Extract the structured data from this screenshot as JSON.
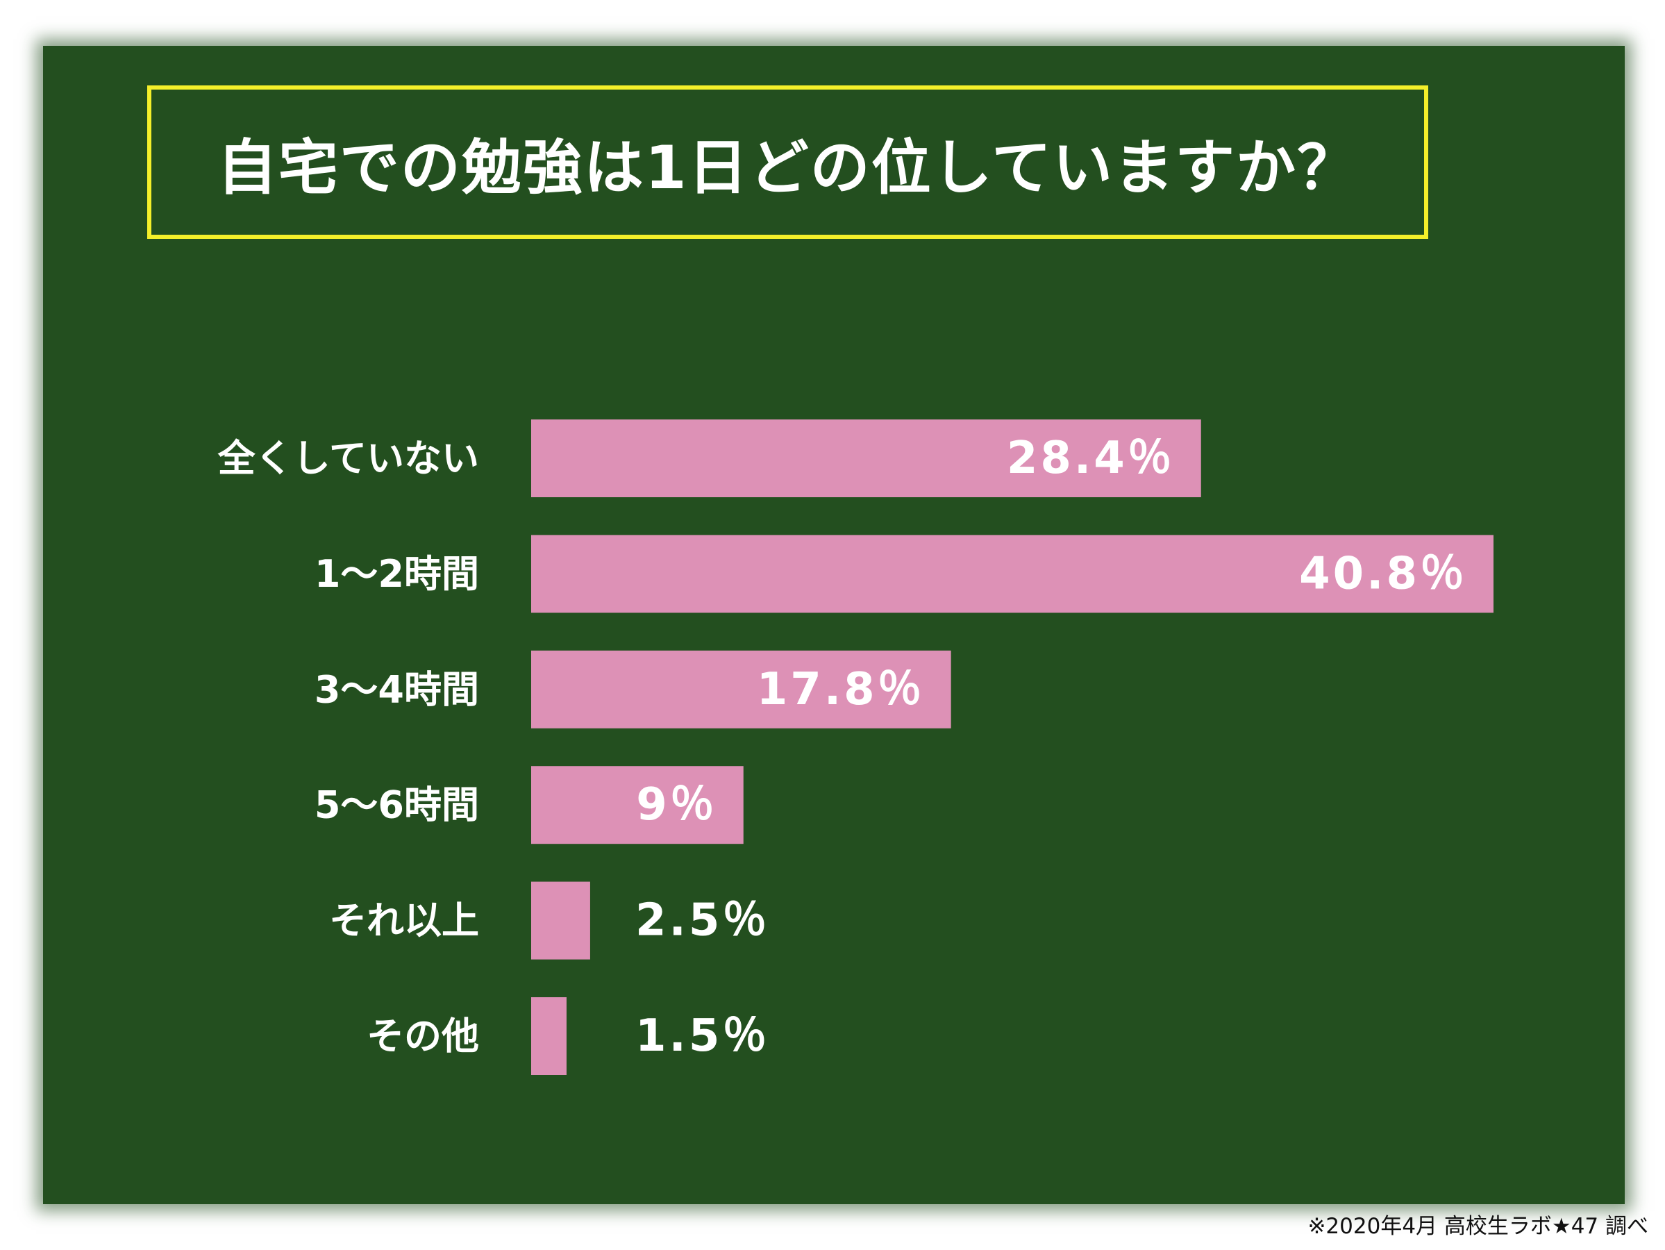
{
  "chart_data": {
    "type": "bar",
    "orientation": "horizontal",
    "title": "自宅での勉強は1日どの位していますか？",
    "categories": [
      "全くしていない",
      "1～2時間",
      "3～4時間",
      "5～6時間",
      "それ以上",
      "その他"
    ],
    "values": [
      28.4,
      40.8,
      17.8,
      9,
      2.5,
      1.5
    ],
    "value_labels": [
      "28.4％",
      "40.8％",
      "17.8％",
      "9％",
      "2.5％",
      "1.5％"
    ],
    "xlim": [
      0,
      40.8
    ],
    "grid": false,
    "legend": "none"
  },
  "footnote": "※2020年4月 高校生ラボ★47 調べ",
  "colors": {
    "board": "#234f1f",
    "bar": "#dd91b6",
    "title_border": "#f4ef2a",
    "text": "#ffffff"
  }
}
